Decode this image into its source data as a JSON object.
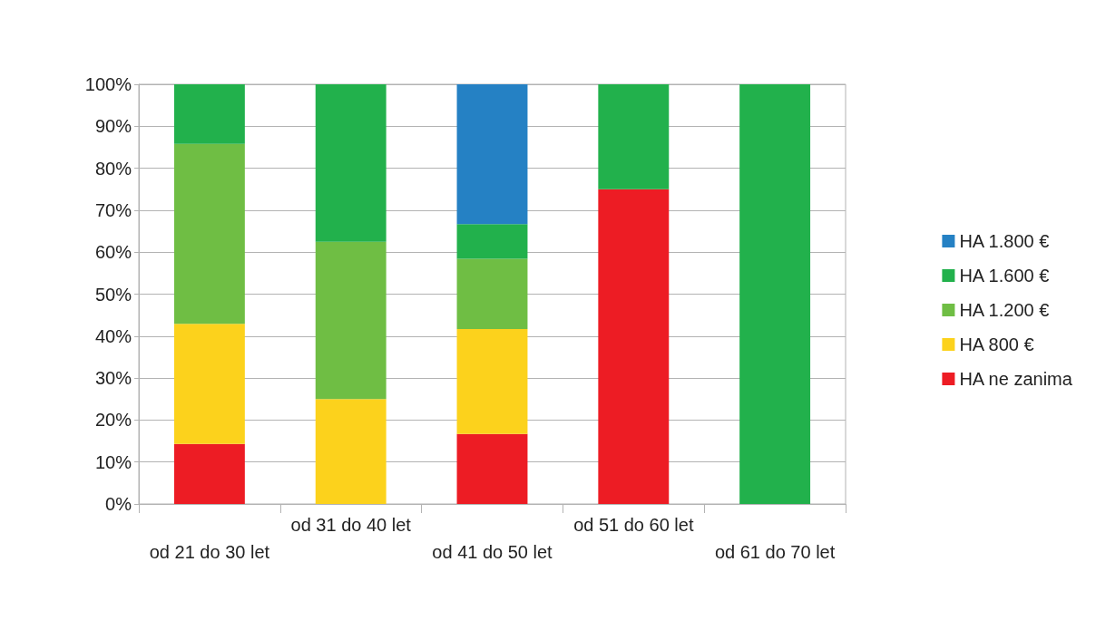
{
  "chart_data": {
    "type": "bar",
    "stacked": true,
    "categories": [
      "od 21 do 30 let",
      "od 31 do 40 let",
      "od 41 do 50 let",
      "od 51 do 60 let",
      "od 61 do 70 let"
    ],
    "series": [
      {
        "name": "HA ne zanima",
        "color": "#ed1c24",
        "values": [
          14.3,
          0,
          16.7,
          75,
          0
        ]
      },
      {
        "name": "HA 800 €",
        "color": "#fcd21c",
        "values": [
          28.6,
          25,
          25,
          0,
          0
        ]
      },
      {
        "name": "HA 1.200 €",
        "color": "#6fbe44",
        "values": [
          42.9,
          37.5,
          16.7,
          0,
          0
        ]
      },
      {
        "name": "HA 1.600 €",
        "color": "#22b14c",
        "values": [
          14.3,
          37.5,
          8.3,
          25,
          100
        ]
      },
      {
        "name": "HA 1.800 €",
        "color": "#2581c4",
        "values": [
          0,
          0,
          33.3,
          0,
          0
        ]
      }
    ],
    "ylim": [
      0,
      100
    ],
    "yticks": [
      {
        "value": 0,
        "label": "0%"
      },
      {
        "value": 10,
        "label": "10%"
      },
      {
        "value": 20,
        "label": "20%"
      },
      {
        "value": 30,
        "label": "30%"
      },
      {
        "value": 40,
        "label": "40%"
      },
      {
        "value": 50,
        "label": "50%"
      },
      {
        "value": 60,
        "label": "60%"
      },
      {
        "value": 70,
        "label": "70%"
      },
      {
        "value": 80,
        "label": "80%"
      },
      {
        "value": 90,
        "label": "90%"
      },
      {
        "value": 100,
        "label": "100%"
      }
    ],
    "grid": "y",
    "legend": "right"
  }
}
